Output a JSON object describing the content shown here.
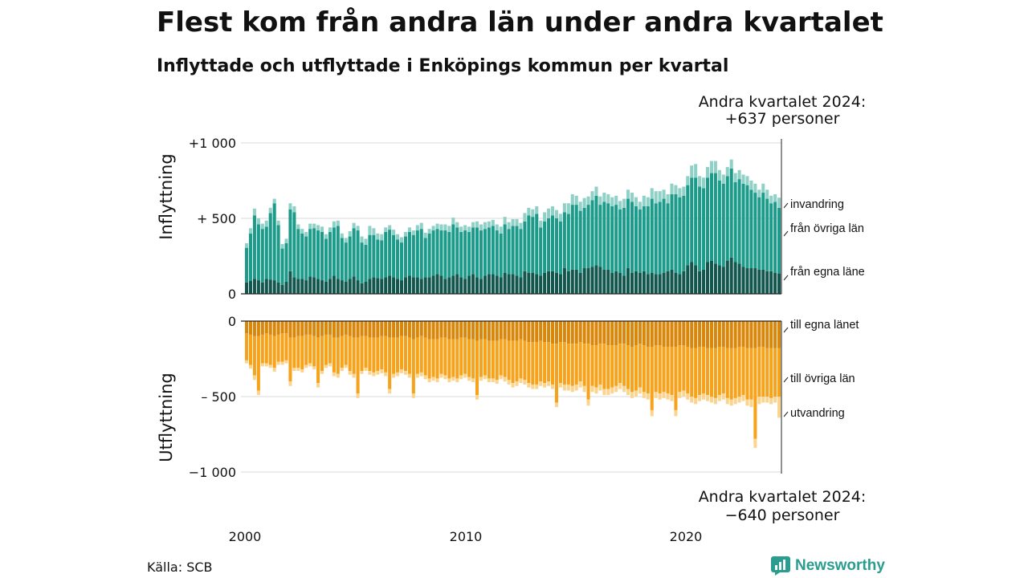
{
  "header": {
    "title": "Flest kom från andra län under andra kvartalet",
    "subtitle": "Inflyttade och utflyttade i Enköpings kommun per kvartal"
  },
  "footer": {
    "source": "Källa: SCB",
    "brand": "Newsworthy"
  },
  "colors": {
    "in_egna": "#12564d",
    "in_ovriga": "#1c9a8a",
    "in_invandring": "#8fd1c6",
    "out_egna": "#d9870b",
    "out_ovriga": "#f7a21b",
    "out_utvandring": "#fbd58f",
    "brand": "#2a9d8f"
  },
  "chart_data": {
    "type": "bar",
    "stacked": true,
    "x_ticks": [
      "2000",
      "2010",
      "2020"
    ],
    "top": {
      "ylabel": "Inflyttning",
      "y_ticks": [
        "+1 000",
        "+ 500",
        "0"
      ],
      "ylim": [
        0,
        1000
      ],
      "annotation": [
        "Andra kvartalet 2024:",
        "+637 personer"
      ],
      "series": [
        {
          "name": "från egna läne",
          "values": [
            75,
            85,
            100,
            90,
            75,
            100,
            95,
            90,
            75,
            60,
            80,
            150,
            110,
            100,
            100,
            90,
            115,
            110,
            100,
            90,
            80,
            100,
            120,
            100,
            90,
            80,
            100,
            115,
            90,
            70,
            80,
            100,
            110,
            105,
            100,
            110,
            120,
            110,
            100,
            90,
            110,
            120,
            110,
            110,
            100,
            110,
            110,
            120,
            130,
            120,
            100,
            110,
            120,
            130,
            110,
            100,
            120,
            130,
            110,
            100,
            120,
            130,
            130,
            120,
            110,
            140,
            130,
            130,
            120,
            110,
            150,
            140,
            140,
            130,
            120,
            140,
            150,
            150,
            140,
            130,
            170,
            150,
            160,
            160,
            140,
            170,
            170,
            180,
            190,
            180,
            160,
            160,
            140,
            150,
            140,
            120,
            170,
            140,
            150,
            140,
            150,
            130,
            140,
            130,
            130,
            140,
            150,
            160,
            140,
            130,
            150,
            190,
            210,
            190,
            150,
            160,
            210,
            220,
            200,
            190,
            180,
            220,
            240,
            210,
            200,
            180,
            170,
            170,
            170,
            160,
            160,
            150,
            150,
            140,
            135
          ]
        },
        {
          "name": "från övriga län",
          "values": [
            230,
            315,
            420,
            370,
            355,
            345,
            440,
            510,
            380,
            240,
            255,
            410,
            430,
            330,
            300,
            290,
            315,
            325,
            320,
            320,
            285,
            310,
            320,
            350,
            280,
            260,
            280,
            320,
            330,
            270,
            245,
            290,
            280,
            255,
            255,
            300,
            305,
            280,
            260,
            250,
            270,
            290,
            280,
            310,
            330,
            260,
            290,
            300,
            300,
            300,
            320,
            300,
            340,
            310,
            300,
            320,
            290,
            310,
            330,
            320,
            310,
            310,
            320,
            300,
            290,
            320,
            300,
            320,
            330,
            320,
            330,
            380,
            370,
            400,
            320,
            340,
            350,
            370,
            360,
            350,
            370,
            380,
            430,
            430,
            410,
            400,
            420,
            440,
            460,
            410,
            450,
            440,
            440,
            440,
            420,
            450,
            460,
            470,
            430,
            420,
            430,
            450,
            490,
            470,
            480,
            490,
            450,
            500,
            520,
            510,
            500,
            530,
            560,
            580,
            560,
            540,
            560,
            580,
            600,
            560,
            550,
            560,
            590,
            530,
            560,
            550,
            550,
            520,
            500,
            480,
            510,
            480,
            450,
            470,
            435
          ]
        },
        {
          "name": "invandring",
          "values": [
            30,
            35,
            45,
            40,
            35,
            40,
            35,
            30,
            30,
            30,
            30,
            40,
            40,
            30,
            30,
            30,
            35,
            30,
            35,
            35,
            30,
            30,
            40,
            35,
            30,
            30,
            35,
            35,
            30,
            40,
            40,
            60,
            45,
            40,
            40,
            30,
            30,
            35,
            35,
            35,
            30,
            30,
            30,
            35,
            40,
            35,
            30,
            30,
            35,
            40,
            40,
            40,
            45,
            35,
            35,
            35,
            35,
            35,
            40,
            40,
            45,
            40,
            40,
            40,
            45,
            50,
            45,
            45,
            45,
            40,
            55,
            50,
            50,
            50,
            45,
            60,
            65,
            60,
            55,
            50,
            60,
            70,
            70,
            60,
            60,
            65,
            55,
            60,
            60,
            55,
            60,
            60,
            60,
            60,
            55,
            60,
            60,
            60,
            60,
            50,
            70,
            60,
            70,
            80,
            70,
            60,
            60,
            70,
            60,
            60,
            60,
            60,
            80,
            90,
            70,
            70,
            70,
            80,
            80,
            70,
            60,
            60,
            60,
            60,
            60,
            60,
            60,
            60,
            60,
            50,
            60,
            60,
            50,
            50,
            67
          ]
        }
      ]
    },
    "bottom": {
      "ylabel": "Utflyttning",
      "y_ticks": [
        "0",
        "– 500",
        "−1 000"
      ],
      "ylim": [
        -1000,
        0
      ],
      "annotation": [
        "Andra kvartalet 2024:",
        "−640 personer"
      ],
      "series": [
        {
          "name": "till egna länet",
          "values": [
            -80,
            -90,
            -100,
            -100,
            -90,
            -80,
            -90,
            -100,
            -90,
            -80,
            -80,
            -110,
            -110,
            -100,
            -100,
            -90,
            -90,
            -100,
            -110,
            -100,
            -90,
            -90,
            -110,
            -110,
            -100,
            -90,
            -100,
            -110,
            -110,
            -100,
            -100,
            -110,
            -110,
            -110,
            -100,
            -100,
            -110,
            -110,
            -110,
            -100,
            -100,
            -110,
            -120,
            -110,
            -100,
            -110,
            -120,
            -120,
            -120,
            -110,
            -110,
            -120,
            -120,
            -120,
            -110,
            -110,
            -120,
            -120,
            -130,
            -120,
            -120,
            -130,
            -130,
            -130,
            -120,
            -120,
            -130,
            -130,
            -130,
            -120,
            -130,
            -140,
            -140,
            -140,
            -130,
            -140,
            -140,
            -150,
            -150,
            -140,
            -140,
            -150,
            -150,
            -150,
            -140,
            -150,
            -150,
            -160,
            -160,
            -150,
            -150,
            -160,
            -160,
            -160,
            -150,
            -150,
            -160,
            -170,
            -160,
            -150,
            -160,
            -170,
            -170,
            -160,
            -160,
            -170,
            -170,
            -170,
            -170,
            -160,
            -160,
            -170,
            -180,
            -180,
            -170,
            -170,
            -180,
            -180,
            -180,
            -170,
            -170,
            -180,
            -180,
            -180,
            -170,
            -170,
            -180,
            -180,
            -180,
            -170,
            -170,
            -180,
            -180,
            -180,
            -180
          ]
        },
        {
          "name": "till övriga län",
          "values": [
            -180,
            -200,
            -260,
            -360,
            -190,
            -200,
            -200,
            -210,
            -180,
            -190,
            -180,
            -290,
            -200,
            -210,
            -220,
            -200,
            -190,
            -200,
            -300,
            -230,
            -200,
            -190,
            -230,
            -240,
            -210,
            -200,
            -230,
            -240,
            -370,
            -230,
            -210,
            -220,
            -230,
            -220,
            -220,
            -240,
            -340,
            -240,
            -230,
            -220,
            -230,
            -240,
            -360,
            -240,
            -240,
            -250,
            -260,
            -250,
            -260,
            -240,
            -250,
            -260,
            -250,
            -260,
            -250,
            -240,
            -250,
            -260,
            -360,
            -250,
            -240,
            -250,
            -250,
            -260,
            -240,
            -250,
            -260,
            -280,
            -270,
            -260,
            -260,
            -270,
            -280,
            -280,
            -270,
            -270,
            -260,
            -270,
            -390,
            -270,
            -280,
            -270,
            -280,
            -270,
            -260,
            -280,
            -370,
            -270,
            -280,
            -270,
            -300,
            -290,
            -280,
            -270,
            -260,
            -280,
            -290,
            -300,
            -300,
            -290,
            -310,
            -310,
            -420,
            -310,
            -320,
            -300,
            -310,
            -320,
            -420,
            -310,
            -300,
            -310,
            -320,
            -330,
            -320,
            -310,
            -310,
            -320,
            -330,
            -320,
            -310,
            -330,
            -340,
            -330,
            -330,
            -320,
            -340,
            -340,
            -600,
            -330,
            -330,
            -320,
            -330,
            -320,
            -320
          ]
        },
        {
          "name": "utvandring",
          "values": [
            -20,
            -25,
            -30,
            -30,
            -20,
            -20,
            -20,
            -25,
            -20,
            -20,
            -20,
            -30,
            -20,
            -20,
            -20,
            -20,
            -20,
            -20,
            -30,
            -20,
            -20,
            -20,
            -25,
            -25,
            -20,
            -20,
            -25,
            -25,
            -30,
            -20,
            -20,
            -25,
            -25,
            -25,
            -25,
            -25,
            -30,
            -25,
            -25,
            -25,
            -25,
            -25,
            -30,
            -25,
            -25,
            -25,
            -25,
            -25,
            -25,
            -25,
            -25,
            -25,
            -25,
            -25,
            -25,
            -25,
            -25,
            -25,
            -30,
            -25,
            -25,
            -25,
            -25,
            -25,
            -25,
            -30,
            -30,
            -30,
            -30,
            -30,
            -30,
            -30,
            -30,
            -30,
            -30,
            -30,
            -30,
            -30,
            -30,
            -30,
            -40,
            -40,
            -40,
            -40,
            -40,
            -40,
            -40,
            -40,
            -40,
            -40,
            -40,
            -40,
            -40,
            -40,
            -40,
            -40,
            -40,
            -40,
            -40,
            -40,
            -40,
            -40,
            -40,
            -40,
            -40,
            -40,
            -40,
            -40,
            -40,
            -40,
            -40,
            -40,
            -40,
            -40,
            -40,
            -40,
            -40,
            -40,
            -40,
            -40,
            -40,
            -40,
            -40,
            -40,
            -40,
            -40,
            -40,
            -50,
            -60,
            -50,
            -40,
            -40,
            -40,
            -40,
            -140
          ]
        }
      ]
    }
  }
}
